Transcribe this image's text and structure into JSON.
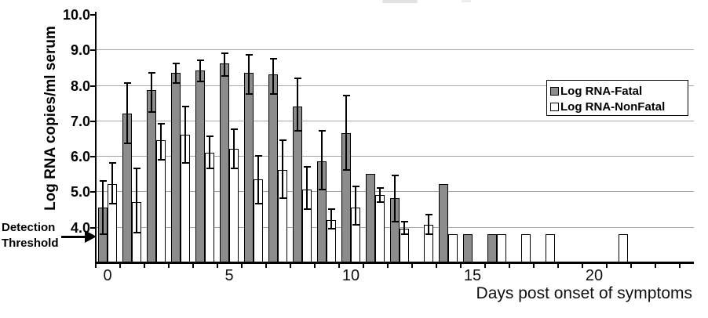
{
  "figure": {
    "y_axis": {
      "title": "Log RNA copies/ml serum",
      "tick_labels": [
        "10.0",
        "9.0",
        "8.0",
        "7.0",
        "6.0",
        "5.0",
        "4.0"
      ],
      "tick_values": [
        10,
        9,
        8,
        7,
        6,
        5,
        4
      ]
    },
    "x_axis": {
      "title": "Days post onset of symptoms",
      "tick_labels": [
        "0",
        "5",
        "10",
        "15",
        "20"
      ],
      "tick_days": [
        0,
        5,
        10,
        15,
        20
      ]
    },
    "annotation": {
      "line1": "Detection",
      "line2": "Threshold",
      "points_to_value": 3.7
    },
    "legend": {
      "items": [
        {
          "label": "Log RNA-Fatal",
          "swatch": "#8c8c8c"
        },
        {
          "label": "Log RNA-NonFatal",
          "swatch": "#ffffff"
        }
      ]
    },
    "colors": {
      "fatal_fill": "#8c8c8c",
      "nonfatal_fill": "#ffffff",
      "bar_border": "#000000",
      "gridline": "#a6a6a6",
      "axis": "#000000"
    }
  },
  "chart_data": {
    "type": "bar",
    "title": "",
    "xlabel": "Days post onset of symptoms",
    "ylabel": "Log RNA copies/ml serum",
    "ylim": [
      3.0,
      10.0
    ],
    "bar_base": 3.0,
    "detection_threshold": 3.7,
    "grid": "horizontal",
    "legend_position": "right-middle",
    "categories": [
      0,
      1,
      2,
      3,
      4,
      5,
      6,
      7,
      8,
      9,
      10,
      11,
      12,
      13,
      14,
      15,
      16,
      17,
      18,
      19,
      20,
      21,
      22,
      23
    ],
    "series": [
      {
        "name": "Log RNA-Fatal",
        "fill": "#8c8c8c",
        "values": [
          4.55,
          7.2,
          7.85,
          8.35,
          8.4,
          8.6,
          8.35,
          8.3,
          7.4,
          5.85,
          6.65,
          5.5,
          4.8,
          null,
          5.2,
          3.8,
          3.8,
          null,
          null,
          null,
          null,
          null,
          null,
          null
        ],
        "err_low": [
          3.8,
          6.35,
          7.25,
          8.05,
          8.1,
          8.25,
          7.75,
          7.75,
          6.7,
          5.05,
          5.6,
          null,
          4.15,
          null,
          null,
          null,
          null,
          null,
          null,
          null,
          null,
          null,
          null,
          null
        ],
        "err_high": [
          5.3,
          8.05,
          8.35,
          8.6,
          8.7,
          8.9,
          8.85,
          8.75,
          8.2,
          6.7,
          7.7,
          null,
          5.45,
          null,
          null,
          null,
          null,
          null,
          null,
          null,
          null,
          null,
          null,
          null
        ]
      },
      {
        "name": "Log RNA-NonFatal",
        "fill": "#ffffff",
        "values": [
          5.2,
          4.7,
          6.45,
          6.6,
          6.1,
          6.2,
          5.35,
          5.6,
          5.05,
          4.2,
          4.55,
          4.9,
          3.95,
          4.05,
          3.8,
          null,
          3.8,
          3.8,
          3.8,
          null,
          null,
          3.8,
          null,
          null
        ],
        "err_low": [
          4.65,
          3.85,
          5.9,
          5.8,
          5.65,
          5.65,
          4.65,
          4.8,
          4.5,
          3.95,
          4.05,
          4.7,
          3.8,
          3.8,
          null,
          null,
          null,
          null,
          null,
          null,
          null,
          null,
          null,
          null
        ],
        "err_high": [
          5.8,
          5.65,
          6.9,
          7.4,
          6.55,
          6.75,
          6.0,
          6.45,
          5.7,
          4.5,
          5.15,
          5.1,
          4.15,
          4.35,
          null,
          null,
          null,
          null,
          null,
          null,
          null,
          null,
          null,
          null
        ]
      }
    ]
  }
}
